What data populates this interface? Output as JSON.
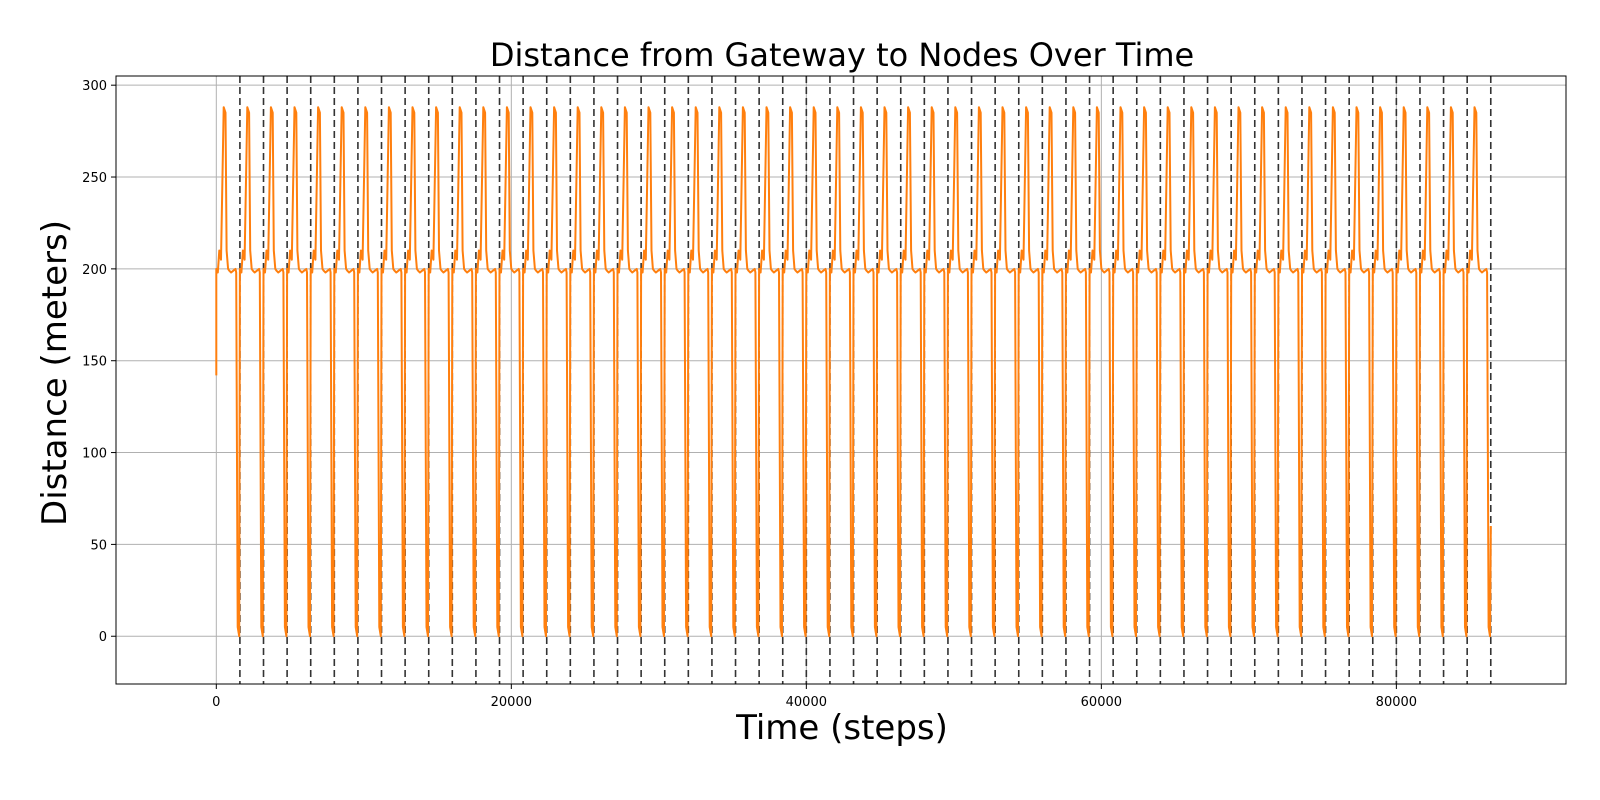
{
  "chart_data": {
    "type": "line",
    "title": "Distance from Gateway to Nodes Over Time",
    "xlabel": "Time (steps)",
    "ylabel": "Distance (meters)",
    "xlim": [
      -6800,
      91500
    ],
    "ylim": [
      -26,
      305
    ],
    "xticks": [
      0,
      20000,
      40000,
      60000,
      80000
    ],
    "xtick_labels": [
      "0",
      "20000",
      "40000",
      "60000",
      "80000"
    ],
    "yticks": [
      0,
      50,
      100,
      150,
      200,
      250,
      300
    ],
    "ytick_labels": [
      "0",
      "50",
      "100",
      "150",
      "200",
      "250",
      "300"
    ],
    "grid": true,
    "legend": "none",
    "colors": {
      "line": "#ff7f0e",
      "vlines": "#333333",
      "grid": "#b0b0b0"
    },
    "cycle_boundaries_x": [
      0,
      1600,
      3200,
      4800,
      6400,
      8000,
      9600,
      11200,
      12800,
      14400,
      16000,
      17600,
      19200,
      20800,
      22400,
      24000,
      25600,
      27200,
      28800,
      30400,
      32000,
      33600,
      35200,
      36800,
      38400,
      40000,
      41600,
      43200,
      44800,
      46400,
      48000,
      49600,
      51200,
      52800,
      54400,
      56000,
      57600,
      59200,
      60800,
      62400,
      64000,
      65600,
      67200,
      68800,
      70400,
      72000,
      73600,
      75200,
      76800,
      78400,
      80000,
      81600,
      83200,
      84800,
      86400
    ],
    "series": [
      {
        "values_per_cycle": {
          "x_offsets": [
            0,
            100,
            200,
            320,
            500,
            620,
            700,
            800,
            880,
            1000,
            1150,
            1300,
            1350,
            1450,
            1550,
            1600
          ],
          "y": [
            200,
            198,
            210,
            205,
            288,
            285,
            210,
            200,
            199,
            198,
            199,
            200,
            198,
            5,
            0,
            200
          ]
        },
        "start_point": {
          "x": 0,
          "y": 142
        },
        "end_point": {
          "x": 86400,
          "y": 60
        }
      }
    ]
  }
}
